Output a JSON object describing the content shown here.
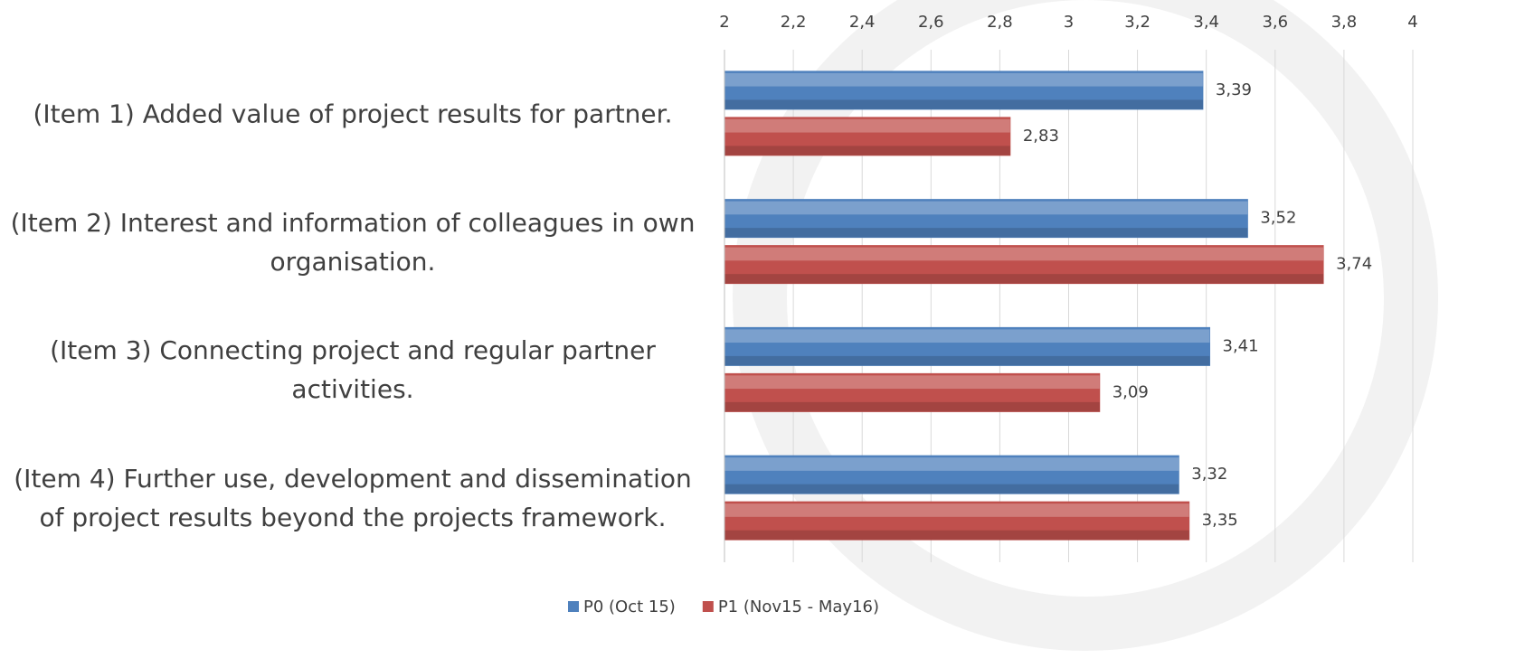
{
  "chart_data": {
    "type": "hbar",
    "categories": [
      "(Item 1) Added value of project results for partner.",
      "(Item 2) Interest and information of colleagues in own organisation.",
      "(Item 3) Connecting project and regular partner activities.",
      "(Item 4) Further use, development and dissemination of project results beyond the projects framework."
    ],
    "series": [
      {
        "name": "P0 (Oct 15)",
        "color": "#4f81bd",
        "values": [
          3.39,
          3.52,
          3.41,
          3.32
        ],
        "value_labels": [
          "3,39",
          "3,52",
          "3,41",
          "3,32"
        ]
      },
      {
        "name": "P1 (Nov15 - May16)",
        "color": "#c0504d",
        "values": [
          2.83,
          3.74,
          3.09,
          3.35
        ],
        "value_labels": [
          "2,83",
          "3,74",
          "3,09",
          "3,35"
        ]
      }
    ],
    "xlim": [
      2,
      4
    ],
    "xticks": [
      2,
      {
        "value": 2.2,
        "label": "2,2"
      },
      {
        "value": 2.4,
        "label": "2,4"
      },
      {
        "value": 2.6,
        "label": "2,6"
      },
      {
        "value": 2.8,
        "label": "2,8"
      },
      3,
      {
        "value": 3.2,
        "label": "3,2"
      },
      {
        "value": 3.4,
        "label": "3,4"
      },
      {
        "value": 3.6,
        "label": "3,6"
      },
      {
        "value": 3.8,
        "label": "3,8"
      },
      4
    ],
    "grid": true,
    "legend": "bottom"
  }
}
